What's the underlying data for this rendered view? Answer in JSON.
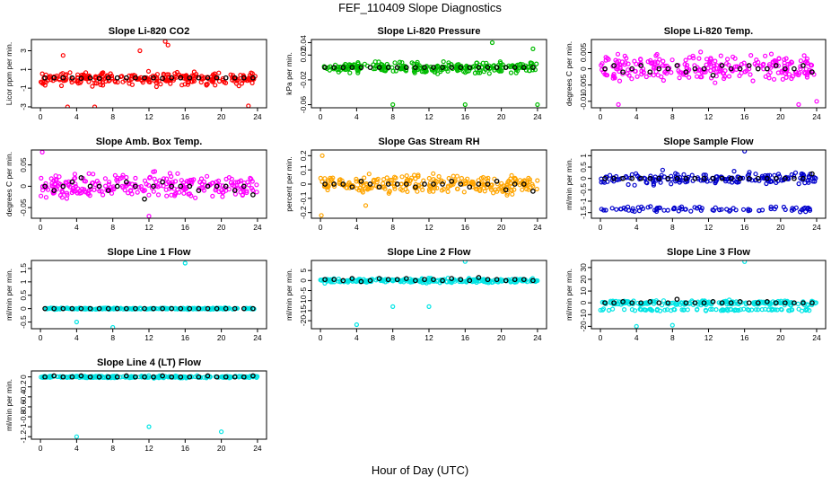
{
  "title": "FEF_110409  Slope Diagnostics",
  "xlabel": "Hour of Day (UTC)",
  "x_ticks": [
    0,
    4,
    8,
    12,
    16,
    20,
    24
  ],
  "colors": {
    "mean": "#000000"
  },
  "chart_data": [
    {
      "type": "scatter",
      "title": "Slope Li-820 CO2",
      "ylabel": "Licor ppm per min.",
      "ylim": [
        -3.1,
        4.2
      ],
      "yticks": [
        -3,
        -1,
        1,
        3
      ],
      "color": "#ff0000",
      "spread": 1.0,
      "outliers": [
        [
          13.8,
          4.0
        ],
        [
          14.1,
          3.6
        ],
        [
          3.0,
          -3.0
        ],
        [
          6.0,
          -3.0
        ],
        [
          23.0,
          -2.9
        ],
        [
          11.0,
          3.0
        ],
        [
          2.5,
          2.5
        ]
      ],
      "mean_points": [
        [
          0.5,
          0.1
        ],
        [
          1.5,
          0.1
        ],
        [
          2.5,
          0.1
        ],
        [
          3.5,
          0.1
        ],
        [
          4.5,
          0.05
        ],
        [
          5.5,
          0.1
        ],
        [
          6.5,
          0.05
        ],
        [
          7.5,
          0.1
        ],
        [
          8.5,
          0.1
        ],
        [
          9.5,
          0.1
        ],
        [
          10.5,
          0.1
        ],
        [
          11.5,
          0.1
        ],
        [
          12.5,
          0.1
        ],
        [
          13.5,
          0.05
        ],
        [
          14.5,
          0.1
        ],
        [
          15.5,
          0.1
        ],
        [
          16.5,
          0.1
        ],
        [
          17.5,
          0.1
        ],
        [
          18.5,
          0.1
        ],
        [
          19.5,
          0.1
        ],
        [
          20.5,
          0.1
        ],
        [
          21.5,
          0.1
        ],
        [
          22.5,
          0.1
        ],
        [
          23.5,
          0.1
        ]
      ]
    },
    {
      "type": "scatter",
      "title": "Slope Li-820 Pressure",
      "ylabel": "kPa per min.",
      "ylim": [
        -0.065,
        0.045
      ],
      "yticks": [
        -0.06,
        -0.02,
        0.02,
        0.04
      ],
      "color": "#00bb00",
      "spread": 0.012,
      "outliers": [
        [
          19,
          0.04
        ],
        [
          8,
          -0.06
        ],
        [
          16,
          -0.06
        ],
        [
          24,
          -0.06
        ],
        [
          23.5,
          0.03
        ]
      ],
      "mean_points": [
        [
          0.5,
          0.0
        ],
        [
          1.5,
          0.0
        ],
        [
          2.5,
          0.0
        ],
        [
          3.5,
          0.0
        ],
        [
          4.5,
          0.0
        ],
        [
          5.5,
          0.0
        ],
        [
          6.5,
          0.0
        ],
        [
          7.5,
          0.0
        ],
        [
          8.5,
          0.0
        ],
        [
          9.5,
          0.0
        ],
        [
          10.5,
          0.0
        ],
        [
          11.5,
          0.0
        ],
        [
          12.5,
          0.0
        ],
        [
          13.5,
          0.0
        ],
        [
          14.5,
          0.0
        ],
        [
          15.5,
          0.0
        ],
        [
          16.5,
          0.0
        ],
        [
          17.5,
          0.0
        ],
        [
          18.5,
          0.0
        ],
        [
          19.5,
          0.0
        ],
        [
          20.5,
          0.0
        ],
        [
          21.5,
          0.0
        ],
        [
          22.5,
          0.0
        ],
        [
          23.5,
          0.0
        ]
      ]
    },
    {
      "type": "scatter",
      "title": "Slope Li-820 Temp.",
      "ylabel": "degrees C per min.",
      "ylim": [
        -0.012,
        0.009
      ],
      "yticks": [
        -0.01,
        -0.005,
        0.0,
        0.005
      ],
      "color": "#ff00ff",
      "spread": 0.006,
      "outliers": [
        [
          2,
          -0.011
        ],
        [
          22,
          -0.011
        ],
        [
          24,
          -0.01
        ]
      ],
      "mean_points": [
        [
          0.5,
          0.0
        ],
        [
          1.5,
          0.001
        ],
        [
          2.5,
          -0.001
        ],
        [
          3.5,
          0.0
        ],
        [
          4.5,
          0.001
        ],
        [
          5.5,
          -0.001
        ],
        [
          6.5,
          0.0
        ],
        [
          7.5,
          0.0
        ],
        [
          8.5,
          0.001
        ],
        [
          9.5,
          -0.001
        ],
        [
          10.5,
          0.0
        ],
        [
          11.5,
          0.0
        ],
        [
          12.5,
          -0.002
        ],
        [
          13.5,
          0.001
        ],
        [
          14.5,
          0.0
        ],
        [
          15.5,
          0.0
        ],
        [
          16.5,
          0.001
        ],
        [
          17.5,
          0.0
        ],
        [
          18.5,
          0.0
        ],
        [
          19.5,
          0.001
        ],
        [
          20.5,
          0.0
        ],
        [
          21.5,
          0.0
        ],
        [
          22.5,
          0.001
        ],
        [
          23.5,
          -0.001
        ]
      ]
    },
    {
      "type": "scatter",
      "title": "Slope Amb. Box Temp.",
      "ylabel": "degrees C per min.",
      "ylim": [
        -0.075,
        0.085
      ],
      "yticks": [
        -0.05,
        0.0,
        0.05
      ],
      "color": "#ff00ff",
      "spread": 0.04,
      "outliers": [
        [
          0.2,
          0.08
        ],
        [
          12,
          -0.07
        ]
      ],
      "mean_points": [
        [
          0.5,
          0.0
        ],
        [
          1.5,
          -0.01
        ],
        [
          2.5,
          0.0
        ],
        [
          3.5,
          0.01
        ],
        [
          4.5,
          0.02
        ],
        [
          5.5,
          0.0
        ],
        [
          6.5,
          0.0
        ],
        [
          7.5,
          -0.01
        ],
        [
          8.5,
          0.0
        ],
        [
          9.5,
          0.01
        ],
        [
          10.5,
          0.0
        ],
        [
          11.5,
          -0.03
        ],
        [
          12.5,
          0.0
        ],
        [
          13.5,
          0.01
        ],
        [
          14.5,
          0.0
        ],
        [
          15.5,
          0.0
        ],
        [
          16.5,
          0.0
        ],
        [
          17.5,
          -0.01
        ],
        [
          18.5,
          0.0
        ],
        [
          19.5,
          0.0
        ],
        [
          20.5,
          0.0
        ],
        [
          21.5,
          -0.01
        ],
        [
          22.5,
          0.0
        ],
        [
          23.5,
          -0.02
        ]
      ]
    },
    {
      "type": "scatter",
      "title": "Slope Gas Stream RH",
      "ylabel": "percent per min.",
      "ylim": [
        -0.24,
        0.24
      ],
      "yticks": [
        -0.2,
        -0.1,
        0.0,
        0.1,
        0.2
      ],
      "color": "#ffa500",
      "spread": 0.1,
      "outliers": [
        [
          0.2,
          0.2
        ],
        [
          0.1,
          -0.22
        ],
        [
          5,
          -0.15
        ]
      ],
      "mean_points": [
        [
          0.5,
          0.0
        ],
        [
          1.5,
          0.0
        ],
        [
          2.5,
          0.0
        ],
        [
          3.5,
          -0.02
        ],
        [
          4.5,
          0.02
        ],
        [
          5.5,
          0.0
        ],
        [
          6.5,
          -0.02
        ],
        [
          7.5,
          0.0
        ],
        [
          8.5,
          0.0
        ],
        [
          9.5,
          0.0
        ],
        [
          10.5,
          -0.02
        ],
        [
          11.5,
          0.0
        ],
        [
          12.5,
          0.0
        ],
        [
          13.5,
          0.0
        ],
        [
          14.5,
          0.02
        ],
        [
          15.5,
          0.0
        ],
        [
          16.5,
          -0.02
        ],
        [
          17.5,
          0.0
        ],
        [
          18.5,
          0.0
        ],
        [
          19.5,
          0.02
        ],
        [
          20.5,
          -0.04
        ],
        [
          21.5,
          0.0
        ],
        [
          22.5,
          0.0
        ],
        [
          23.5,
          -0.05
        ]
      ]
    },
    {
      "type": "scatter",
      "title": "Slope Sample Flow",
      "ylabel": "ml/min per min.",
      "ylim": [
        -1.75,
        1.25
      ],
      "yticks": [
        -1.5,
        -1.0,
        -0.5,
        0.0,
        0.5,
        1.0
      ],
      "color": "#0000cc",
      "spread": 0.4,
      "lower_band": -1.35,
      "outliers": [
        [
          16,
          1.2
        ]
      ],
      "mean_points": [
        [
          0.5,
          0.0
        ],
        [
          1.5,
          0.0
        ],
        [
          2.5,
          0.0
        ],
        [
          3.5,
          0.0
        ],
        [
          4.5,
          0.0
        ],
        [
          5.5,
          0.0
        ],
        [
          6.5,
          0.0
        ],
        [
          7.5,
          0.0
        ],
        [
          8.5,
          0.0
        ],
        [
          9.5,
          0.0
        ],
        [
          10.5,
          0.0
        ],
        [
          11.5,
          0.0
        ],
        [
          12.5,
          0.0
        ],
        [
          13.5,
          0.0
        ],
        [
          14.5,
          0.0
        ],
        [
          15.5,
          0.0
        ],
        [
          16.5,
          0.0
        ],
        [
          17.5,
          0.0
        ],
        [
          18.5,
          0.0
        ],
        [
          19.5,
          0.0
        ],
        [
          20.5,
          0.0
        ],
        [
          21.5,
          0.0
        ],
        [
          22.5,
          0.0
        ],
        [
          23.5,
          0.2
        ]
      ]
    },
    {
      "type": "scatter",
      "title": "Slope Line 1 Flow",
      "ylabel": "ml/min per min.",
      "ylim": [
        -0.75,
        1.8
      ],
      "yticks": [
        -0.5,
        0.0,
        0.5,
        1.0,
        1.5
      ],
      "color": "#00e5e5",
      "spread": 0.04,
      "outliers": [
        [
          16,
          1.7
        ],
        [
          4,
          -0.5
        ],
        [
          8,
          -0.7
        ]
      ],
      "mean_points": [
        [
          0.5,
          0.0
        ],
        [
          1.5,
          0.0
        ],
        [
          2.5,
          0.0
        ],
        [
          3.5,
          0.0
        ],
        [
          4.5,
          0.0
        ],
        [
          5.5,
          0.0
        ],
        [
          6.5,
          0.0
        ],
        [
          7.5,
          0.0
        ],
        [
          8.5,
          0.0
        ],
        [
          9.5,
          0.0
        ],
        [
          10.5,
          0.0
        ],
        [
          11.5,
          0.0
        ],
        [
          12.5,
          0.0
        ],
        [
          13.5,
          0.0
        ],
        [
          14.5,
          0.0
        ],
        [
          15.5,
          0.0
        ],
        [
          16.5,
          0.0
        ],
        [
          17.5,
          0.0
        ],
        [
          18.5,
          0.0
        ],
        [
          19.5,
          0.0
        ],
        [
          20.5,
          0.0
        ],
        [
          21.5,
          0.0
        ],
        [
          22.5,
          0.0
        ],
        [
          23.5,
          0.0
        ]
      ]
    },
    {
      "type": "scatter",
      "title": "Slope Line 2 Flow",
      "ylabel": "ml/min per min.",
      "ylim": [
        -24,
        10
      ],
      "yticks": [
        -20,
        -15,
        -10,
        -5,
        0,
        5
      ],
      "color": "#00e5e5",
      "spread": 1.5,
      "outliers": [
        [
          16,
          9.5
        ],
        [
          4,
          -22
        ],
        [
          8,
          -13
        ],
        [
          12,
          -13
        ]
      ],
      "mean_points": [
        [
          0.5,
          0.5
        ],
        [
          1.5,
          0.5
        ],
        [
          2.5,
          0.0
        ],
        [
          3.5,
          1.0
        ],
        [
          4.5,
          -0.5
        ],
        [
          5.5,
          0.0
        ],
        [
          6.5,
          1.0
        ],
        [
          7.5,
          0.5
        ],
        [
          8.5,
          0.5
        ],
        [
          9.5,
          1.0
        ],
        [
          10.5,
          0.0
        ],
        [
          11.5,
          0.5
        ],
        [
          12.5,
          0.5
        ],
        [
          13.5,
          0.0
        ],
        [
          14.5,
          1.0
        ],
        [
          15.5,
          0.5
        ],
        [
          16.5,
          0.0
        ],
        [
          17.5,
          1.5
        ],
        [
          18.5,
          0.5
        ],
        [
          19.5,
          0.5
        ],
        [
          20.5,
          0.0
        ],
        [
          21.5,
          0.5
        ],
        [
          22.5,
          0.5
        ],
        [
          23.5,
          0.0
        ]
      ]
    },
    {
      "type": "scatter",
      "title": "Slope Line 3 Flow",
      "ylabel": "ml/min per min.",
      "ylim": [
        -22,
        36
      ],
      "yticks": [
        -20,
        -10,
        0,
        10,
        20,
        30
      ],
      "color": "#00e5e5",
      "spread": 3.0,
      "lower_band": -6.0,
      "outliers": [
        [
          16,
          35
        ],
        [
          4,
          -20
        ],
        [
          8,
          -19
        ]
      ],
      "mean_points": [
        [
          0.5,
          0.0
        ],
        [
          1.5,
          0.0
        ],
        [
          2.5,
          1.0
        ],
        [
          3.5,
          0.0
        ],
        [
          4.5,
          0.0
        ],
        [
          5.5,
          1.0
        ],
        [
          6.5,
          0.0
        ],
        [
          7.5,
          0.0
        ],
        [
          8.5,
          3.0
        ],
        [
          9.5,
          0.0
        ],
        [
          10.5,
          0.0
        ],
        [
          11.5,
          0.0
        ],
        [
          12.5,
          1.0
        ],
        [
          13.5,
          0.0
        ],
        [
          14.5,
          0.0
        ],
        [
          15.5,
          1.0
        ],
        [
          16.5,
          0.0
        ],
        [
          17.5,
          0.0
        ],
        [
          18.5,
          1.0
        ],
        [
          19.5,
          0.0
        ],
        [
          20.5,
          0.0
        ],
        [
          21.5,
          0.0
        ],
        [
          22.5,
          0.0
        ],
        [
          23.5,
          0.0
        ]
      ]
    },
    {
      "type": "scatter",
      "title": "Slope Line 4 (LT) Flow",
      "ylabel": "ml/min per min.",
      "ylim": [
        -1.25,
        0.12
      ],
      "yticks": [
        -1.2,
        -1.0,
        -0.8,
        -0.6,
        -0.4,
        -0.2,
        0.0
      ],
      "color": "#00e5e5",
      "spread": 0.03,
      "outliers": [
        [
          4,
          -1.2
        ],
        [
          12,
          -1.0
        ],
        [
          20,
          -1.1
        ]
      ],
      "mean_points": [
        [
          0.5,
          0.0
        ],
        [
          1.5,
          0.02
        ],
        [
          2.5,
          0.0
        ],
        [
          3.5,
          0.0
        ],
        [
          4.5,
          0.02
        ],
        [
          5.5,
          0.0
        ],
        [
          6.5,
          0.0
        ],
        [
          7.5,
          0.0
        ],
        [
          8.5,
          0.0
        ],
        [
          9.5,
          0.02
        ],
        [
          10.5,
          0.0
        ],
        [
          11.5,
          0.0
        ],
        [
          12.5,
          0.0
        ],
        [
          13.5,
          0.02
        ],
        [
          14.5,
          0.0
        ],
        [
          15.5,
          0.0
        ],
        [
          16.5,
          0.0
        ],
        [
          17.5,
          0.0
        ],
        [
          18.5,
          0.02
        ],
        [
          19.5,
          0.0
        ],
        [
          20.5,
          0.0
        ],
        [
          21.5,
          0.0
        ],
        [
          22.5,
          0.0
        ],
        [
          23.5,
          0.02
        ]
      ]
    }
  ]
}
